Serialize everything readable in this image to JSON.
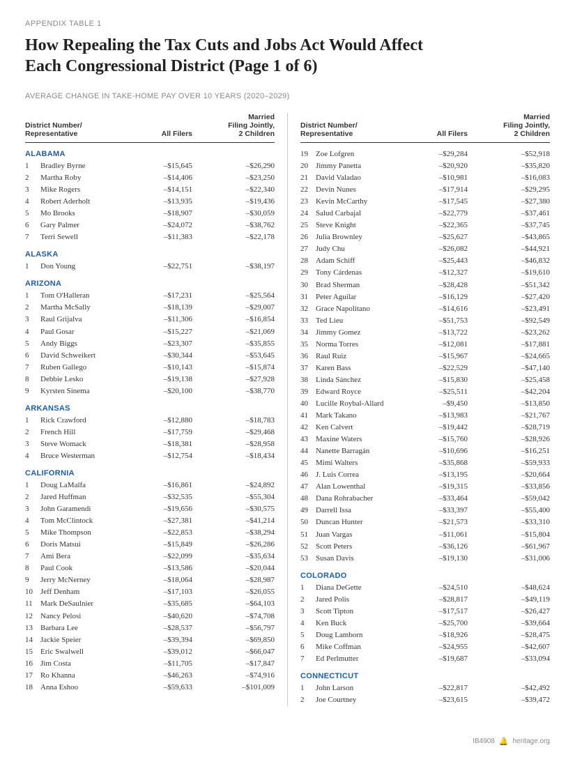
{
  "eyebrow": "APPENDIX TABLE 1",
  "title_line1": "How Repealing the Tax Cuts and Jobs Act Would Affect",
  "title_line2": "Each Congressional District (Page 1 of 6)",
  "subtitle": "AVERAGE CHANGE IN TAKE-HOME PAY OVER 10 YEARS (2020–2029)",
  "columns_header": {
    "district": "District Number/\nRepresentative",
    "all": "All Filers",
    "married": "Married\nFiling Jointly,\n2 Children"
  },
  "colors": {
    "state_header": "#1a5eb3",
    "text": "#333333",
    "muted": "#888888",
    "rule": "#cccccc",
    "background": "#ffffff"
  },
  "fonts": {
    "header_family": "Arial",
    "body_family": "Georgia",
    "title_size_pt": 24,
    "eyebrow_size_pt": 11,
    "body_size_pt": 11,
    "thead_size_pt": 10.5
  },
  "left": [
    {
      "state": "ALABAMA",
      "rows": [
        {
          "n": "1",
          "name": "Bradley Byrne",
          "all": "–$15,645",
          "m": "–$26,290"
        },
        {
          "n": "2",
          "name": "Martha Roby",
          "all": "–$14,406",
          "m": "–$23,250"
        },
        {
          "n": "3",
          "name": "Mike Rogers",
          "all": "–$14,151",
          "m": "–$22,340"
        },
        {
          "n": "4",
          "name": "Robert Aderholt",
          "all": "–$13,935",
          "m": "–$19,436"
        },
        {
          "n": "5",
          "name": "Mo Brooks",
          "all": "–$18,907",
          "m": "–$30,059"
        },
        {
          "n": "6",
          "name": "Gary Palmer",
          "all": "–$24,072",
          "m": "–$38,762"
        },
        {
          "n": "7",
          "name": "Terri Sewell",
          "all": "–$11,383",
          "m": "–$22,178"
        }
      ]
    },
    {
      "state": "ALASKA",
      "rows": [
        {
          "n": "1",
          "name": "Don Young",
          "all": "–$22,751",
          "m": "–$38,197"
        }
      ]
    },
    {
      "state": "ARIZONA",
      "rows": [
        {
          "n": "1",
          "name": "Tom O'Halleran",
          "all": "–$17,231",
          "m": "–$25,564"
        },
        {
          "n": "2",
          "name": "Martha McSally",
          "all": "–$18,139",
          "m": "–$29,007"
        },
        {
          "n": "3",
          "name": "Raul Grijalva",
          "all": "–$11,306",
          "m": "–$16,854"
        },
        {
          "n": "4",
          "name": "Paul Gosar",
          "all": "–$15,227",
          "m": "–$21,069"
        },
        {
          "n": "5",
          "name": "Andy Biggs",
          "all": "–$23,307",
          "m": "–$35,855"
        },
        {
          "n": "6",
          "name": "David Schweikert",
          "all": "–$30,344",
          "m": "–$53,645"
        },
        {
          "n": "7",
          "name": "Ruben Gallego",
          "all": "–$10,143",
          "m": "–$15,874"
        },
        {
          "n": "8",
          "name": "Debbie Lesko",
          "all": "–$19,138",
          "m": "–$27,928"
        },
        {
          "n": "9",
          "name": "Kyrsten Sinema",
          "all": "–$20,100",
          "m": "–$38,770"
        }
      ]
    },
    {
      "state": "ARKANSAS",
      "rows": [
        {
          "n": "1",
          "name": "Rick Crawford",
          "all": "–$12,880",
          "m": "–$18,783"
        },
        {
          "n": "2",
          "name": "French Hill",
          "all": "–$17,759",
          "m": "–$29,468"
        },
        {
          "n": "3",
          "name": "Steve Womack",
          "all": "–$18,381",
          "m": "–$28,958"
        },
        {
          "n": "4",
          "name": "Bruce Westerman",
          "all": "–$12,754",
          "m": "–$18,434"
        }
      ]
    },
    {
      "state": "CALIFORNIA",
      "rows": [
        {
          "n": "1",
          "name": "Doug LaMalfa",
          "all": "–$16,861",
          "m": "–$24,892"
        },
        {
          "n": "2",
          "name": "Jared Huffman",
          "all": "–$32,535",
          "m": "–$55,304"
        },
        {
          "n": "3",
          "name": "John Garamendi",
          "all": "–$19,656",
          "m": "–$30,575"
        },
        {
          "n": "4",
          "name": "Tom McClintock",
          "all": "–$27,381",
          "m": "–$41,214"
        },
        {
          "n": "5",
          "name": "Mike Thompson",
          "all": "–$22,853",
          "m": "–$38,294"
        },
        {
          "n": "6",
          "name": "Doris Matsui",
          "all": "–$15,849",
          "m": "–$26,286"
        },
        {
          "n": "7",
          "name": "Ami Bera",
          "all": "–$22,099",
          "m": "–$35,634"
        },
        {
          "n": "8",
          "name": "Paul Cook",
          "all": "–$13,586",
          "m": "–$20,044"
        },
        {
          "n": "9",
          "name": "Jerry McNerney",
          "all": "–$18,064",
          "m": "–$28,987"
        },
        {
          "n": "10",
          "name": "Jeff Denham",
          "all": "–$17,103",
          "m": "–$26,055"
        },
        {
          "n": "11",
          "name": "Mark DeSaulnier",
          "all": "–$35,685",
          "m": "–$64,103"
        },
        {
          "n": "12",
          "name": "Nancy Pelosi",
          "all": "–$40,620",
          "m": "–$74,708"
        },
        {
          "n": "13",
          "name": "Barbara Lee",
          "all": "–$28,537",
          "m": "–$56,797"
        },
        {
          "n": "14",
          "name": "Jackie Speier",
          "all": "–$39,394",
          "m": "–$69,850"
        },
        {
          "n": "15",
          "name": "Eric Swalwell",
          "all": "–$39,012",
          "m": "–$66,047"
        },
        {
          "n": "16",
          "name": "Jim Costa",
          "all": "–$11,705",
          "m": "–$17,847"
        },
        {
          "n": "17",
          "name": "Ro Khanna",
          "all": "–$46,263",
          "m": "–$74,916"
        },
        {
          "n": "18",
          "name": "Anna Eshoo",
          "all": "–$59,633",
          "m": "–$101,009"
        }
      ]
    }
  ],
  "right": [
    {
      "state": null,
      "rows": [
        {
          "n": "19",
          "name": "Zoe Lofgren",
          "all": "–$29,284",
          "m": "–$52,918"
        },
        {
          "n": "20",
          "name": "Jimmy Panetta",
          "all": "–$20,920",
          "m": "–$35,820"
        },
        {
          "n": "21",
          "name": "David Valadao",
          "all": "–$10,981",
          "m": "–$16,083"
        },
        {
          "n": "22",
          "name": "Devin Nunes",
          "all": "–$17,914",
          "m": "–$29,295"
        },
        {
          "n": "23",
          "name": "Kevin McCarthy",
          "all": "–$17,545",
          "m": "–$27,380"
        },
        {
          "n": "24",
          "name": "Salud Carbajal",
          "all": "–$22,779",
          "m": "–$37,461"
        },
        {
          "n": "25",
          "name": "Steve Knight",
          "all": "–$22,365",
          "m": "–$37,745"
        },
        {
          "n": "26",
          "name": "Julia Brownley",
          "all": "–$25,627",
          "m": "–$43,865"
        },
        {
          "n": "27",
          "name": "Judy Chu",
          "all": "–$26,082",
          "m": "–$44,921"
        },
        {
          "n": "28",
          "name": "Adam Schiff",
          "all": "–$25,443",
          "m": "–$46,832"
        },
        {
          "n": "29",
          "name": "Tony Cárdenas",
          "all": "–$12,327",
          "m": "–$19,610"
        },
        {
          "n": "30",
          "name": "Brad Sherman",
          "all": "–$28,428",
          "m": "–$51,342"
        },
        {
          "n": "31",
          "name": "Peter Aguilar",
          "all": "–$16,129",
          "m": "–$27,420"
        },
        {
          "n": "32",
          "name": "Grace Napolitano",
          "all": "–$14,616",
          "m": "–$23,491"
        },
        {
          "n": "33",
          "name": "Ted Lieu",
          "all": "–$51,753",
          "m": "–$92,549"
        },
        {
          "n": "34",
          "name": "Jimmy Gomez",
          "all": "–$13,722",
          "m": "–$23,262"
        },
        {
          "n": "35",
          "name": "Norma Torres",
          "all": "–$12,081",
          "m": "–$17,881"
        },
        {
          "n": "36",
          "name": "Raul Ruiz",
          "all": "–$15,967",
          "m": "–$24,665"
        },
        {
          "n": "37",
          "name": "Karen Bass",
          "all": "–$22,529",
          "m": "–$47,140"
        },
        {
          "n": "38",
          "name": "Linda Sánchez",
          "all": "–$15,830",
          "m": "–$25,458"
        },
        {
          "n": "39",
          "name": "Edward Royce",
          "all": "–$25,511",
          "m": "–$42,204"
        },
        {
          "n": "40",
          "name": "Lucille Roybal-Allard",
          "all": "–$9,450",
          "m": "–$13,850"
        },
        {
          "n": "41",
          "name": "Mark Takano",
          "all": "–$13,983",
          "m": "–$21,767"
        },
        {
          "n": "42",
          "name": "Ken Calvert",
          "all": "–$19,442",
          "m": "–$28,719"
        },
        {
          "n": "43",
          "name": "Maxine Waters",
          "all": "–$15,760",
          "m": "–$28,926"
        },
        {
          "n": "44",
          "name": "Nanette Barragán",
          "all": "–$10,696",
          "m": "–$16,251"
        },
        {
          "n": "45",
          "name": "Mimi Walters",
          "all": "–$35,868",
          "m": "–$59,933"
        },
        {
          "n": "46",
          "name": "J. Luis Correa",
          "all": "–$13,195",
          "m": "–$20,664"
        },
        {
          "n": "47",
          "name": "Alan Lowenthal",
          "all": "–$19,315",
          "m": "–$33,856"
        },
        {
          "n": "48",
          "name": "Dana Rohrabacher",
          "all": "–$33,464",
          "m": "–$59,042"
        },
        {
          "n": "49",
          "name": "Darrell Issa",
          "all": "–$33,397",
          "m": "–$55,400"
        },
        {
          "n": "50",
          "name": "Duncan Hunter",
          "all": "–$21,573",
          "m": "–$33,310"
        },
        {
          "n": "51",
          "name": "Juan Vargas",
          "all": "–$11,061",
          "m": "–$15,804"
        },
        {
          "n": "52",
          "name": "Scott Peters",
          "all": "–$36,126",
          "m": "–$61,967"
        },
        {
          "n": "53",
          "name": "Susan Davis",
          "all": "–$19,130",
          "m": "–$31,006"
        }
      ]
    },
    {
      "state": "COLORADO",
      "rows": [
        {
          "n": "1",
          "name": "Diana DeGette",
          "all": "–$24,510",
          "m": "–$48,624"
        },
        {
          "n": "2",
          "name": "Jared Polis",
          "all": "–$28,817",
          "m": "–$49,119"
        },
        {
          "n": "3",
          "name": "Scott Tipton",
          "all": "–$17,517",
          "m": "–$26,427"
        },
        {
          "n": "4",
          "name": "Ken Buck",
          "all": "–$25,700",
          "m": "–$39,664"
        },
        {
          "n": "5",
          "name": "Doug Lamborn",
          "all": "–$18,926",
          "m": "–$28,475"
        },
        {
          "n": "6",
          "name": "Mike Coffman",
          "all": "–$24,955",
          "m": "–$42,607"
        },
        {
          "n": "7",
          "name": "Ed Perlmutter",
          "all": "–$19,687",
          "m": "–$33,094"
        }
      ]
    },
    {
      "state": "CONNECTICUT",
      "rows": [
        {
          "n": "1",
          "name": "John Larson",
          "all": "–$22,817",
          "m": "–$42,492"
        },
        {
          "n": "2",
          "name": "Joe Courtney",
          "all": "–$23,615",
          "m": "–$39,472"
        }
      ]
    }
  ],
  "footer": {
    "code": "IB4908",
    "site": "heritage.org"
  }
}
